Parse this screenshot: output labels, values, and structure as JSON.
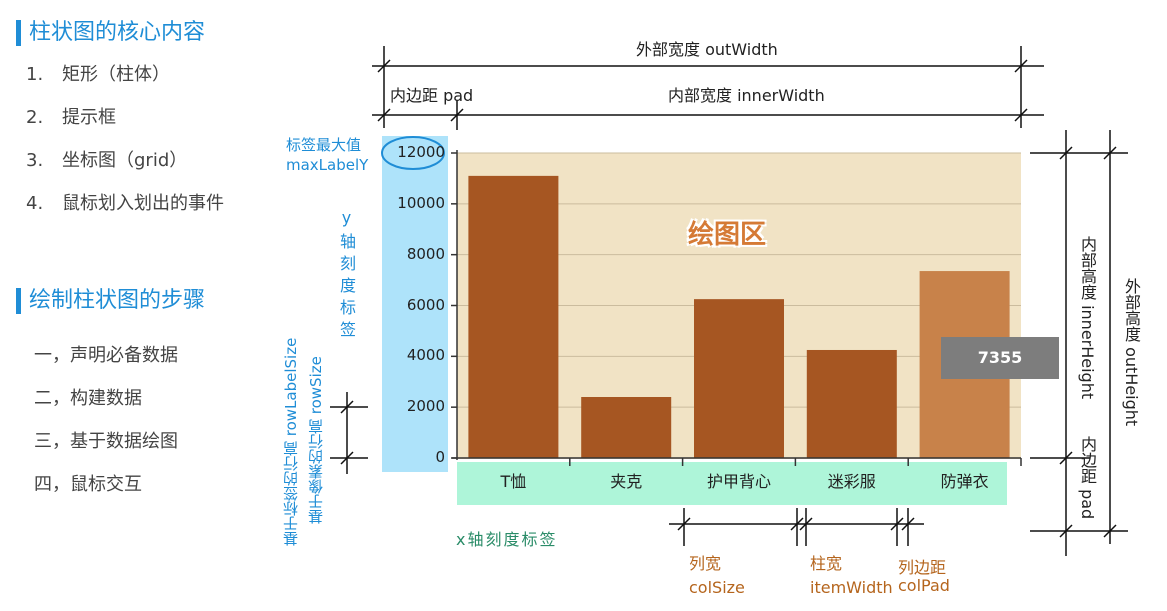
{
  "left": {
    "heading1": "柱状图的核心内容",
    "core_items": [
      {
        "num": "1.",
        "text": "矩形（柱体）"
      },
      {
        "num": "2.",
        "text": "提示框"
      },
      {
        "num": "3.",
        "text": "坐标图（grid）"
      },
      {
        "num": "4.",
        "text": "鼠标划入划出的事件"
      }
    ],
    "heading2": "绘制柱状图的步骤",
    "steps": [
      "一，声明必备数据",
      "二，构建数据",
      "三，基于数据绘图",
      "四，鼠标交互"
    ]
  },
  "diagram": {
    "out_width": "外部宽度 outWidth",
    "pad": "内边距 pad",
    "inner_width": "内部宽度 innerWidth",
    "max_label_l1": "标签最大值",
    "max_label_l2": "maxLabelY",
    "y_axis_label": "y轴刻度标签",
    "x_axis_label": "x轴刻度标签",
    "plot_area": "绘图区",
    "inner_height": "内部高度 innerHeight",
    "outer_height": "外部高度 outHeight",
    "bottom_pad": "内边距 pad",
    "row_label_size": "基于标签的行高 rowLabelSize",
    "row_size": "基于像素的行高 rowSize",
    "col_size_l1": "列宽",
    "col_size_l2": "colSize",
    "item_width_l1": "柱宽",
    "item_width_l2": "itemWidth",
    "col_pad_l1": "列边距",
    "col_pad_l2": "colPad",
    "tooltip": "7355"
  },
  "colors": {
    "bar": "#a65622",
    "bar_highlight": "#c8824a",
    "plot_bg": "#f1e3c5",
    "y_label_bg": "#aee3fa",
    "x_label_bg": "#aef5d9",
    "accent": "#1f8dd6"
  },
  "chart_data": {
    "type": "bar",
    "categories": [
      "T恤",
      "夹克",
      "护甲背心",
      "迷彩服",
      "防弹衣"
    ],
    "values": [
      11100,
      2400,
      6250,
      4250,
      7355
    ],
    "yticks": [
      "0",
      "2000",
      "4000",
      "6000",
      "8000",
      "10000",
      "12000"
    ],
    "ylim": [
      0,
      12000
    ],
    "highlighted": "防弹衣",
    "grid": true
  }
}
